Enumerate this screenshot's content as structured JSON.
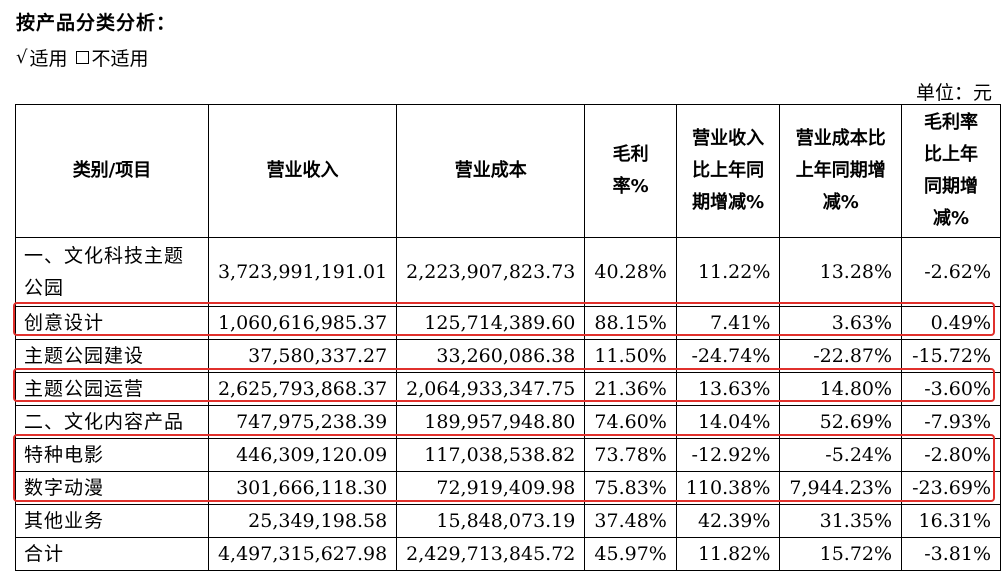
{
  "heading": "按产品分类分析：",
  "options": {
    "applicable_mark": "√",
    "applicable_label": "适用",
    "not_applicable_label": "不适用"
  },
  "unit": "单位：元",
  "table": {
    "headers": [
      "类别/项目",
      "营业收入",
      "营业成本",
      "毛利率%",
      "营业收入比上年同期增减%",
      "营业成本比上年同期增减%",
      "毛利率比上年同期增减%"
    ],
    "rows": [
      {
        "label": "一、文化科技主题公园",
        "revenue": "3,723,991,191.01",
        "cost": "2,223,907,823.73",
        "margin": "40.28%",
        "rev_change": "11.22%",
        "cost_change": "13.28%",
        "margin_change": "-2.62%"
      },
      {
        "label": "创意设计",
        "revenue": "1,060,616,985.37",
        "cost": "125,714,389.60",
        "margin": "88.15%",
        "rev_change": "7.41%",
        "cost_change": "3.63%",
        "margin_change": "0.49%"
      },
      {
        "label": "主题公园建设",
        "revenue": "37,580,337.27",
        "cost": "33,260,086.38",
        "margin": "11.50%",
        "rev_change": "-24.74%",
        "cost_change": "-22.87%",
        "margin_change": "-15.72%"
      },
      {
        "label": "主题公园运营",
        "revenue": "2,625,793,868.37",
        "cost": "2,064,933,347.75",
        "margin": "21.36%",
        "rev_change": "13.63%",
        "cost_change": "14.80%",
        "margin_change": "-3.60%"
      },
      {
        "label": "二、文化内容产品",
        "revenue": "747,975,238.39",
        "cost": "189,957,948.80",
        "margin": "74.60%",
        "rev_change": "14.04%",
        "cost_change": "52.69%",
        "margin_change": "-7.93%"
      },
      {
        "label": "特种电影",
        "revenue": "446,309,120.09",
        "cost": "117,038,538.82",
        "margin": "73.78%",
        "rev_change": "-12.92%",
        "cost_change": "-5.24%",
        "margin_change": "-2.80%"
      },
      {
        "label": "数字动漫",
        "revenue": "301,666,118.30",
        "cost": "72,919,409.98",
        "margin": "75.83%",
        "rev_change": "110.38%",
        "cost_change": "7,944.23%",
        "margin_change": "-23.69%"
      },
      {
        "label": "其他业务",
        "revenue": "25,349,198.58",
        "cost": "15,848,073.19",
        "margin": "37.48%",
        "rev_change": "42.39%",
        "cost_change": "31.35%",
        "margin_change": "16.31%"
      },
      {
        "label": "合计",
        "revenue": "4,497,315,627.98",
        "cost": "2,429,713,845.72",
        "margin": "45.97%",
        "rev_change": "11.82%",
        "cost_change": "15.72%",
        "margin_change": "-3.81%"
      }
    ]
  },
  "highlight_color": "#e0302c"
}
